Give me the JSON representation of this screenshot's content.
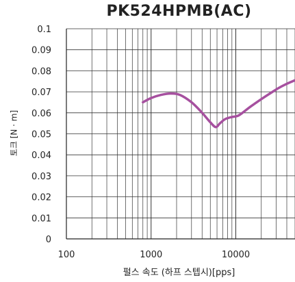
{
  "chart_data": {
    "type": "line",
    "title": "PK524HPMB(AC)",
    "xlabel": "펄스 속도 (하프 스텝시)[pps]",
    "ylabel": "토크 [N · m]",
    "x_scale": "log",
    "xlim": [
      100,
      50000
    ],
    "ylim": [
      0,
      0.1
    ],
    "x_ticks": [
      "100",
      "1000",
      "10000"
    ],
    "y_ticks": [
      "0",
      "0.01",
      "0.02",
      "0.03",
      "0.04",
      "0.05",
      "0.06",
      "0.07",
      "0.08",
      "0.09",
      "0.1"
    ],
    "grid": true,
    "series": [
      {
        "color": "#a6509f",
        "x": [
          800,
          1000,
          1300,
          1700,
          2200,
          3000,
          4000,
          5000,
          5800,
          6500,
          7500,
          9000,
          10500,
          12000,
          15000,
          20000,
          26000,
          32000,
          40000,
          50000
        ],
        "y": [
          0.065,
          0.067,
          0.0685,
          0.0692,
          0.0685,
          0.065,
          0.06,
          0.0555,
          0.0532,
          0.055,
          0.057,
          0.058,
          0.0585,
          0.06,
          0.063,
          0.0665,
          0.0695,
          0.0718,
          0.0738,
          0.0755
        ]
      }
    ]
  }
}
